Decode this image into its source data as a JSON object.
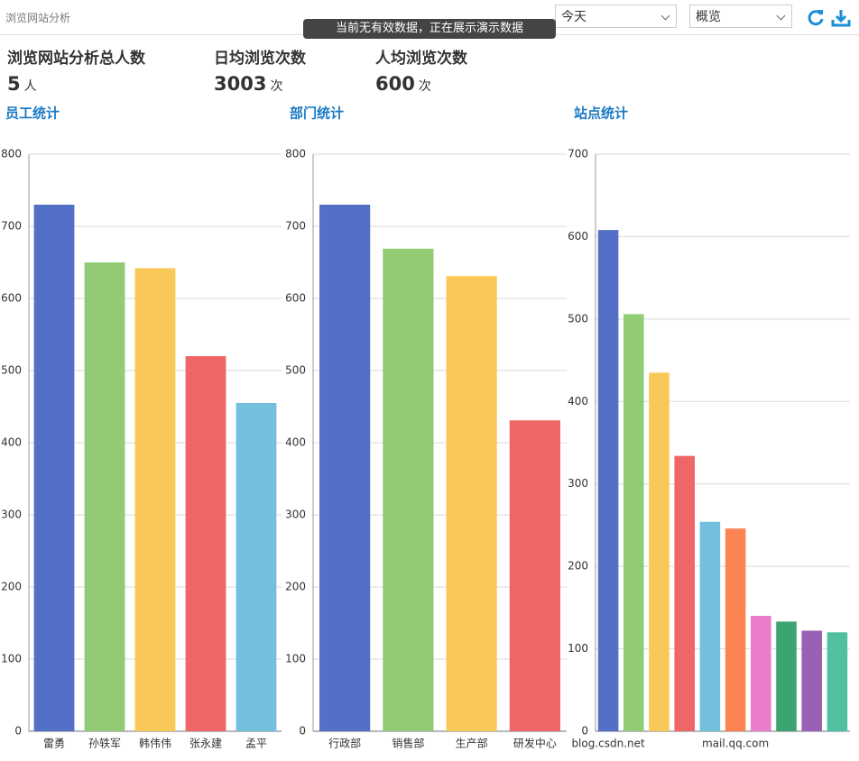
{
  "header": {
    "title": "浏览网站分析",
    "toast": "当前无有效数据，正在展示演示数据",
    "date_select": "今天",
    "view_select": "概览"
  },
  "stats": [
    {
      "label": "浏览网站分析总人数",
      "value": 5,
      "unit": "人"
    },
    {
      "label": "日均浏览次数",
      "value": 3003,
      "unit": "次"
    },
    {
      "label": "人均浏览次数",
      "value": 600,
      "unit": "次"
    }
  ],
  "chart_data": [
    {
      "type": "bar",
      "title": "员工统计",
      "categories": [
        "雷勇",
        "孙轶军",
        "韩伟伟",
        "张永建",
        "孟平"
      ],
      "values": [
        730,
        650,
        642,
        520,
        455
      ],
      "colors": [
        "#5470c6",
        "#91cc75",
        "#fac858",
        "#ee6666",
        "#73c0de"
      ],
      "ylim": [
        0,
        800
      ],
      "yticks": [
        0,
        100,
        200,
        300,
        400,
        500,
        600,
        700,
        800
      ],
      "grid": true
    },
    {
      "type": "bar",
      "title": "部门统计",
      "categories": [
        "行政部",
        "销售部",
        "生产部",
        "研发中心"
      ],
      "values": [
        730,
        669,
        631,
        431
      ],
      "colors": [
        "#5470c6",
        "#91cc75",
        "#fac858",
        "#ee6666"
      ],
      "ylim": [
        0,
        800
      ],
      "yticks": [
        0,
        100,
        200,
        300,
        400,
        500,
        600,
        700,
        800
      ],
      "grid": true
    },
    {
      "type": "bar",
      "title": "站点统计",
      "categories": [
        "blog.csdn.net",
        null,
        null,
        null,
        null,
        "mail.qq.com",
        null,
        null,
        null,
        null
      ],
      "values": [
        608,
        506,
        435,
        334,
        254,
        246,
        140,
        133,
        122,
        120
      ],
      "colors": [
        "#5470c6",
        "#91cc75",
        "#fac858",
        "#ee6666",
        "#73c0de",
        "#fc8452",
        "#ea7ccc",
        "#3ba272",
        "#9a60b4",
        "#50c0a0"
      ],
      "ylim": [
        0,
        700
      ],
      "yticks": [
        0,
        100,
        200,
        300,
        400,
        500,
        600,
        700
      ],
      "grid": true
    }
  ]
}
